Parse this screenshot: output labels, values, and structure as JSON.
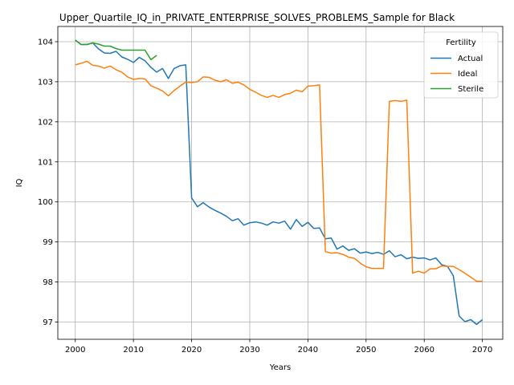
{
  "chart_data": {
    "type": "line",
    "title": "Upper_Quartile_IQ_in_PRIVATE_ENTERPRISE_SOLVES_PROBLEMS_Sample for Black",
    "xlabel": "Years",
    "ylabel": "IQ",
    "xlim": [
      1997,
      2073.5
    ],
    "ylim": [
      96.57,
      104.38
    ],
    "xticks": [
      2000,
      2010,
      2020,
      2030,
      2040,
      2050,
      2060,
      2070
    ],
    "yticks": [
      97,
      98,
      99,
      100,
      101,
      102,
      103,
      104
    ],
    "grid": true,
    "legend": {
      "title": "Fertility",
      "position": "top-right"
    },
    "series": [
      {
        "name": "Actual",
        "color": "#1f77b4",
        "x": [
          2000,
          2001,
          2002,
          2003,
          2004,
          2005,
          2006,
          2007,
          2008,
          2009,
          2010,
          2011,
          2012,
          2013,
          2014,
          2015,
          2016,
          2017,
          2018,
          2019,
          2020,
          2021,
          2022,
          2023,
          2024,
          2025,
          2026,
          2027,
          2028,
          2029,
          2030,
          2031,
          2032,
          2033,
          2034,
          2035,
          2036,
          2037,
          2038,
          2039,
          2040,
          2041,
          2042,
          2043,
          2044,
          2045,
          2046,
          2047,
          2048,
          2049,
          2050,
          2051,
          2052,
          2053,
          2054,
          2055,
          2056,
          2057,
          2058,
          2059,
          2060,
          2061,
          2062,
          2063,
          2064,
          2065,
          2066,
          2067,
          2068,
          2069,
          2070
        ],
        "values": [
          104.04,
          103.93,
          103.93,
          103.97,
          103.82,
          103.72,
          103.71,
          103.76,
          103.62,
          103.56,
          103.48,
          103.61,
          103.52,
          103.36,
          103.24,
          103.33,
          103.08,
          103.33,
          103.4,
          103.42,
          100.1,
          99.88,
          99.98,
          99.87,
          99.79,
          99.72,
          99.64,
          99.53,
          99.58,
          99.42,
          99.48,
          99.5,
          99.47,
          99.42,
          99.5,
          99.47,
          99.52,
          99.32,
          99.56,
          99.39,
          99.49,
          99.34,
          99.35,
          99.08,
          99.1,
          98.82,
          98.9,
          98.79,
          98.83,
          98.72,
          98.75,
          98.71,
          98.74,
          98.69,
          98.78,
          98.63,
          98.68,
          98.58,
          98.62,
          98.59,
          98.6,
          98.55,
          98.6,
          98.43,
          98.39,
          98.16,
          97.15,
          97.01,
          97.06,
          96.94,
          97.06
        ]
      },
      {
        "name": "Ideal",
        "color": "#ff7f0e",
        "x": [
          2000,
          2001,
          2002,
          2003,
          2004,
          2005,
          2006,
          2007,
          2008,
          2009,
          2010,
          2011,
          2012,
          2013,
          2014,
          2015,
          2016,
          2017,
          2018,
          2019,
          2020,
          2021,
          2022,
          2023,
          2024,
          2025,
          2026,
          2027,
          2028,
          2029,
          2030,
          2031,
          2032,
          2033,
          2034,
          2035,
          2036,
          2037,
          2038,
          2039,
          2040,
          2041,
          2042,
          2043,
          2044,
          2045,
          2046,
          2047,
          2048,
          2049,
          2050,
          2051,
          2052,
          2053,
          2054,
          2055,
          2056,
          2057,
          2058,
          2059,
          2060,
          2061,
          2062,
          2063,
          2064,
          2065,
          2066,
          2067,
          2068,
          2069,
          2070
        ],
        "values": [
          103.42,
          103.46,
          103.51,
          103.41,
          103.39,
          103.34,
          103.39,
          103.3,
          103.24,
          103.12,
          103.06,
          103.08,
          103.07,
          102.9,
          102.84,
          102.77,
          102.65,
          102.78,
          102.89,
          102.99,
          102.98,
          103.0,
          103.12,
          103.11,
          103.04,
          103.0,
          103.05,
          102.96,
          102.99,
          102.92,
          102.81,
          102.74,
          102.66,
          102.61,
          102.66,
          102.61,
          102.68,
          102.71,
          102.79,
          102.75,
          102.89,
          102.9,
          102.92,
          98.76,
          98.72,
          98.73,
          98.69,
          98.62,
          98.59,
          98.47,
          98.38,
          98.34,
          98.34,
          98.34,
          102.51,
          102.53,
          102.51,
          102.54,
          98.22,
          98.27,
          98.22,
          98.33,
          98.33,
          98.4,
          98.39,
          98.39,
          98.31,
          98.22,
          98.12,
          98.02,
          98.02
        ]
      },
      {
        "name": "Sterile",
        "color": "#2ca02c",
        "x": [
          2000,
          2001,
          2002,
          2003,
          2004,
          2005,
          2006,
          2007,
          2008,
          2009,
          2010,
          2011,
          2012,
          2013,
          2014
        ],
        "values": [
          104.04,
          103.93,
          103.93,
          103.97,
          103.94,
          103.89,
          103.89,
          103.83,
          103.79,
          103.79,
          103.79,
          103.79,
          103.79,
          103.55,
          103.66
        ]
      }
    ]
  }
}
